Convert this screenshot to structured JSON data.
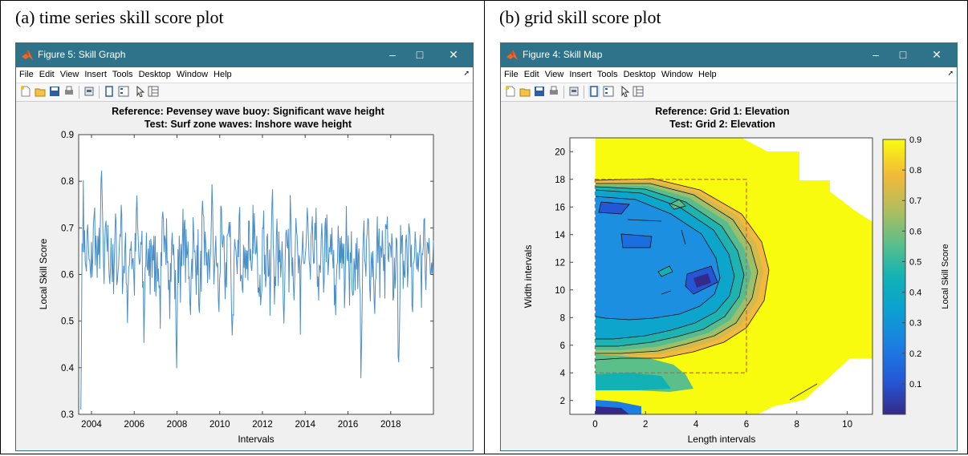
{
  "panel_a": {
    "caption": "(a) time series skill score plot",
    "window_title": "Figure 5: Skill Graph",
    "menu": [
      "File",
      "Edit",
      "View",
      "Insert",
      "Tools",
      "Desktop",
      "Window",
      "Help"
    ],
    "toolbar_icons": [
      "new-figure-icon",
      "open-file-icon",
      "save-icon",
      "print-icon",
      "print-preview-icon",
      "figure-window-icon",
      "legend-icon",
      "pointer-icon",
      "property-editor-icon"
    ],
    "chart_data": {
      "type": "line",
      "title": "Reference: Pevensey wave buoy: Significant wave height",
      "subtitle": "Test: Surf zone waves: Inshore wave height",
      "xlabel": "Intervals",
      "ylabel": "Local Skill Score",
      "xlim": [
        2003.4,
        2020.0
      ],
      "ylim": [
        0.3,
        0.9
      ],
      "xticks": [
        "2004",
        "2006",
        "2008",
        "2010",
        "2012",
        "2014",
        "2016",
        "2018"
      ],
      "yticks": [
        "0.3",
        "0.4",
        "0.5",
        "0.6",
        "0.7",
        "0.8",
        "0.9"
      ],
      "series": [
        {
          "color": "#4a8fc7",
          "x_start": 2003.5,
          "x_end": 2020.0,
          "values": [
            0.31,
            0.82,
            0.6,
            0.7,
            0.56,
            0.66,
            0.78,
            0.58,
            0.69,
            0.86,
            0.53,
            0.76,
            0.62,
            0.68,
            0.55,
            0.73,
            0.57,
            0.81,
            0.6,
            0.65,
            0.5,
            0.72,
            0.64,
            0.58,
            0.78,
            0.61,
            0.67,
            0.45,
            0.7,
            0.59,
            0.63,
            0.74,
            0.57,
            0.66,
            0.48,
            0.72,
            0.61,
            0.76,
            0.55,
            0.68,
            0.63,
            0.38,
            0.7,
            0.58,
            0.75,
            0.62,
            0.66,
            0.52,
            0.73,
            0.6,
            0.69,
            0.47,
            0.77,
            0.61,
            0.65,
            0.56,
            0.84,
            0.59,
            0.68,
            0.5,
            0.71,
            0.63,
            0.57,
            0.74,
            0.66,
            0.43,
            0.7,
            0.6,
            0.76,
            0.55,
            0.67,
            0.62,
            0.72,
            0.49,
            0.79,
            0.6,
            0.65,
            0.58,
            0.73,
            0.63,
            0.69,
            0.5,
            0.81,
            0.58,
            0.66,
            0.62,
            0.71,
            0.52,
            0.74,
            0.6,
            0.85,
            0.57,
            0.68,
            0.64,
            0.47,
            0.7,
            0.62,
            0.77,
            0.55,
            0.67,
            0.63,
            0.72,
            0.5,
            0.66,
            0.6,
            0.75,
            0.58,
            0.69,
            0.62,
            0.48,
            0.73,
            0.61,
            0.66,
            0.56,
            0.78,
            0.6,
            0.64,
            0.52,
            0.71,
            0.63,
            0.36,
            0.69,
            0.58,
            0.74,
            0.61,
            0.66,
            0.5,
            0.72,
            0.62,
            0.68,
            0.57,
            0.75,
            0.6,
            0.64,
            0.55,
            0.7,
            0.37,
            0.66,
            0.59,
            0.72,
            0.63,
            0.8,
            0.55,
            0.67,
            0.6,
            0.65,
            0.51,
            0.73,
            0.62,
            0.69,
            0.58,
            0.82
          ],
          "noise_note": ""
        }
      ]
    }
  },
  "panel_b": {
    "caption": "(b) grid skill score plot",
    "window_title": "Figure 4: Skill Map",
    "menu": [
      "File",
      "Edit",
      "View",
      "Insert",
      "Tools",
      "Desktop",
      "Window",
      "Help"
    ],
    "toolbar_icons": [
      "new-figure-icon",
      "open-file-icon",
      "save-icon",
      "print-icon",
      "print-preview-icon",
      "figure-window-icon",
      "legend-icon",
      "pointer-icon",
      "property-editor-icon"
    ],
    "chart_data": {
      "type": "heatmap",
      "title": "Reference: Grid 1: Elevation",
      "subtitle": "Test: Grid 2: Elevation",
      "xlabel": "Length intervals",
      "ylabel": "Width intervals",
      "colorbar_label": "Local Skill Score",
      "xlim": [
        -1,
        11
      ],
      "ylim": [
        1,
        21
      ],
      "xticks": [
        "0",
        "2",
        "4",
        "6",
        "8",
        "10"
      ],
      "yticks": [
        "2",
        "4",
        "6",
        "8",
        "10",
        "12",
        "14",
        "16",
        "18",
        "20"
      ],
      "colorbar_ticks": [
        "0.1",
        "0.2",
        "0.3",
        "0.4",
        "0.5",
        "0.6",
        "0.7",
        "0.8",
        "0.9"
      ],
      "clim": [
        0.0,
        0.9
      ],
      "colormap": "parula",
      "dashed_box": {
        "x": [
          0,
          6
        ],
        "y": [
          4,
          18
        ],
        "color": "#e05050"
      }
    }
  }
}
